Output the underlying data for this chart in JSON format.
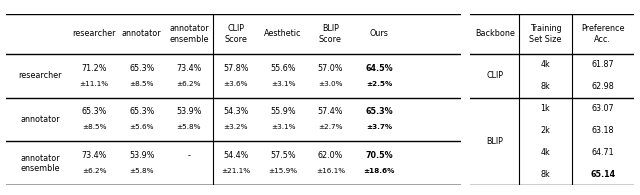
{
  "left_table": {
    "col_headers": [
      "",
      "researcher",
      "annotator",
      "annotator\nensemble",
      "CLIP\nScore",
      "Aesthetic",
      "BLIP\nScore",
      "Ours"
    ],
    "row_headers": [
      "researcher",
      "annotator",
      "annotator\nensemble"
    ],
    "cells": [
      [
        "71.2%",
        "±11.1%",
        "65.3%",
        "±8.5%",
        "73.4%",
        "±6.2%",
        "57.8%",
        "±3.6%",
        "55.6%",
        "±3.1%",
        "57.0%",
        "±3.0%",
        "64.5%",
        "±2.5%"
      ],
      [
        "65.3%",
        "±8.5%",
        "65.3%",
        "±5.6%",
        "53.9%",
        "±5.8%",
        "54.3%",
        "±3.2%",
        "55.9%",
        "±3.1%",
        "57.4%",
        "±2.7%",
        "65.3%",
        "±3.7%"
      ],
      [
        "73.4%",
        "±6.2%",
        "53.9%",
        "±5.8%",
        "-",
        "",
        "54.4%",
        "±21.1%",
        "57.5%",
        "±15.9%",
        "62.0%",
        "±16.1%",
        "70.5%",
        "±18.6%"
      ]
    ],
    "bold_col": 6
  },
  "right_table": {
    "col_headers": [
      "Backbone",
      "Training\nSet Size",
      "Preference\nAcc."
    ],
    "rows": [
      [
        "CLIP",
        "4k",
        "61.87"
      ],
      [
        "",
        "8k",
        "62.98"
      ],
      [
        "BLIP",
        "1k",
        "63.07"
      ],
      [
        "",
        "2k",
        "63.18"
      ],
      [
        "",
        "4k",
        "64.71"
      ],
      [
        "",
        "8k",
        "65.14"
      ]
    ],
    "bold_values": [
      "65.14"
    ]
  },
  "bg_color": "#ffffff",
  "text_color": "#000000"
}
